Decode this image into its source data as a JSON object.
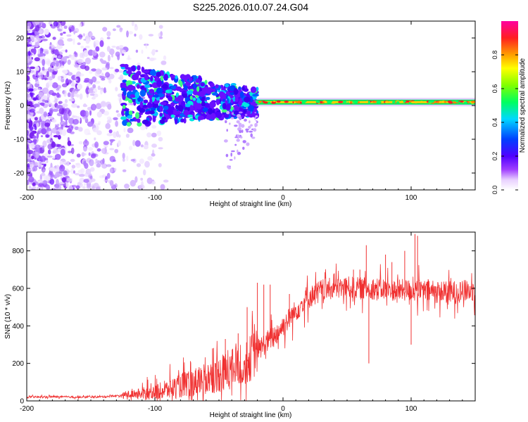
{
  "title": "S225.2026.010.07.24.G04",
  "chart_data": [
    {
      "type": "heatmap",
      "name": "spectrogram",
      "xlabel": "Height of straight line (km)",
      "ylabel": "Frequency (Hz)",
      "xlim": [
        -200,
        150
      ],
      "ylim": [
        -25,
        25
      ],
      "xticks": [
        -200,
        -100,
        0,
        100
      ],
      "yticks": [
        -20,
        -10,
        0,
        10,
        20
      ],
      "colorbar": {
        "label": "Normalized spectral amplitude",
        "range": [
          0,
          1
        ],
        "ticks": [
          "0.0",
          "0.2",
          "0.4",
          "0.6",
          "0.8"
        ],
        "tick_values": [
          0.0,
          0.2,
          0.4,
          0.6,
          0.8
        ]
      },
      "description_values": {
        "noise_region_x": [
          -200,
          -120
        ],
        "band_region_x": [
          -125,
          -20
        ],
        "band_frequency_range_hz": [
          -3,
          10
        ],
        "tone_region_x": [
          -20,
          150
        ],
        "tone_frequency_hz": 1
      }
    },
    {
      "type": "line",
      "name": "snr",
      "xlabel": "Height of straight line (km)",
      "ylabel": "SNR (10 * v/v)",
      "xlim": [
        -200,
        150
      ],
      "ylim": [
        0,
        900
      ],
      "xticks": [
        -200,
        -100,
        0,
        100
      ],
      "yticks": [
        0,
        200,
        400,
        600,
        800
      ],
      "series": [
        {
          "name": "SNR",
          "color": "#f03030",
          "x": [
            -200,
            -180,
            -160,
            -140,
            -125,
            -120,
            -110,
            -100,
            -90,
            -80,
            -70,
            -60,
            -50,
            -40,
            -30,
            -25,
            -20,
            -15,
            -10,
            -5,
            0,
            5,
            10,
            15,
            20,
            25,
            30,
            40,
            50,
            60,
            70,
            80,
            90,
            100,
            110,
            120,
            130,
            140,
            150
          ],
          "y": [
            20,
            22,
            20,
            22,
            30,
            35,
            40,
            45,
            60,
            80,
            100,
            120,
            140,
            170,
            200,
            230,
            270,
            300,
            330,
            360,
            400,
            440,
            480,
            520,
            550,
            570,
            590,
            600,
            605,
            600,
            600,
            595,
            590,
            590,
            585,
            580,
            580,
            585,
            590
          ]
        }
      ],
      "peaks": {
        "x": [
          -55,
          -45,
          -35,
          -28,
          -20,
          -15,
          -10,
          5,
          40,
          55,
          60,
          65,
          67,
          72,
          80,
          85,
          95,
          100,
          103,
          105
        ],
        "y": [
          280,
          330,
          360,
          500,
          630,
          620,
          620,
          570,
          680,
          700,
          700,
          830,
          200,
          580,
          780,
          740,
          800,
          300,
          890,
          880
        ]
      }
    }
  ]
}
